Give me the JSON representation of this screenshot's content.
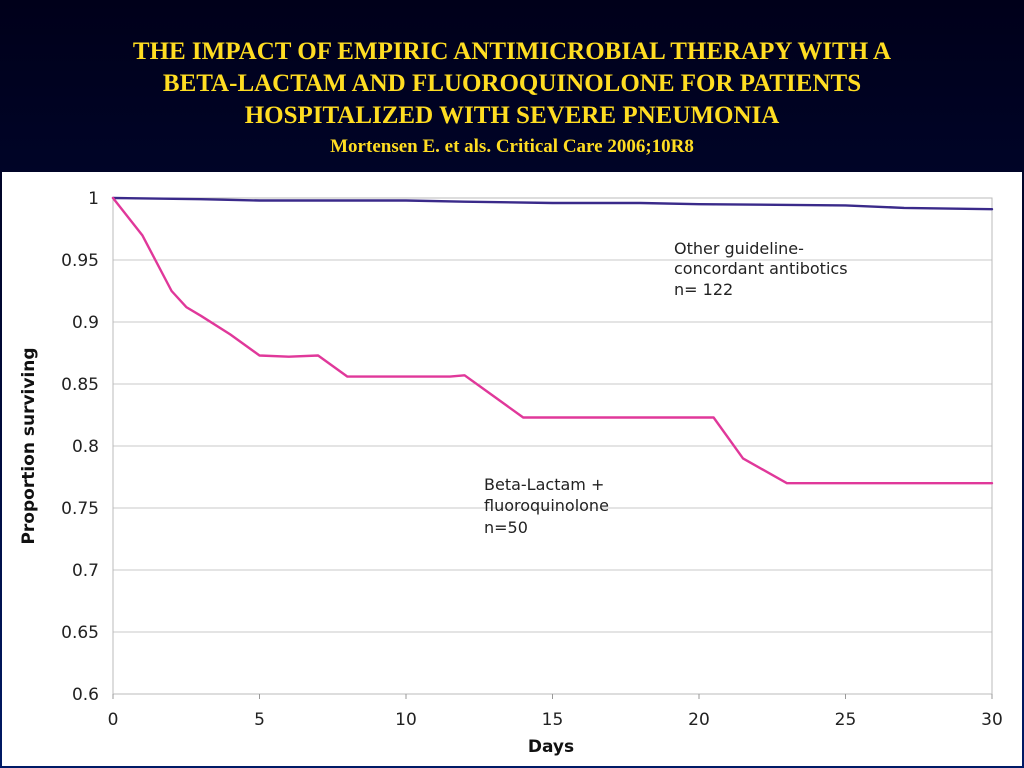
{
  "header": {
    "title_lines": [
      "THE IMPACT OF EMPIRIC ANTIMICROBIAL THERAPY WITH A",
      "BETA-LACTAM AND FLUOROQUINOLONE FOR PATIENTS",
      "HOSPITALIZED WITH SEVERE PNEUMONIA"
    ],
    "citation": "Mortensen E. et als. Critical Care 2006;10R8"
  },
  "chart_data": {
    "type": "line",
    "xlabel": "Days",
    "ylabel": "Proportion surviving",
    "xlim": [
      0,
      30
    ],
    "ylim": [
      0.6,
      1.0
    ],
    "x_ticks": [
      "0",
      "5",
      "10",
      "15",
      "20",
      "25",
      "30"
    ],
    "y_ticks": [
      "1",
      "0.95",
      "0.9",
      "0.85",
      "0.8",
      "0.75",
      "0.7",
      "0.65",
      "0.6"
    ],
    "grid": "horizontal",
    "series": [
      {
        "name_lines": [
          "Other guideline-",
          "concordant antibotics",
          "n= 122"
        ],
        "color": "#3a2a8a",
        "x": [
          0,
          3,
          5,
          10,
          12,
          15,
          18,
          20,
          25,
          27,
          30
        ],
        "y": [
          1.0,
          0.999,
          0.998,
          0.998,
          0.997,
          0.996,
          0.996,
          0.995,
          0.994,
          0.992,
          0.991
        ]
      },
      {
        "name_lines": [
          "Beta-Lactam +",
          "fluoroquinolone",
          "n=50"
        ],
        "color": "#e0389a",
        "x": [
          0,
          1,
          2,
          2.5,
          3,
          4,
          5,
          6,
          7,
          8,
          10,
          11.5,
          12,
          13,
          14,
          15,
          18,
          20.5,
          21.5,
          23,
          25,
          30
        ],
        "y": [
          1.0,
          0.97,
          0.925,
          0.912,
          0.905,
          0.89,
          0.873,
          0.872,
          0.873,
          0.856,
          0.856,
          0.856,
          0.857,
          0.84,
          0.823,
          0.823,
          0.823,
          0.823,
          0.79,
          0.77,
          0.77,
          0.77
        ]
      }
    ]
  }
}
